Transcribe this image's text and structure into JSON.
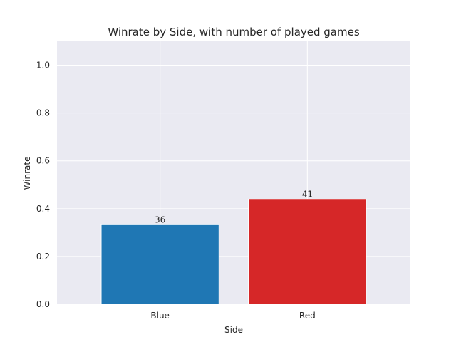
{
  "chart_data": {
    "type": "bar",
    "title": "Winrate by Side, with number of played games",
    "xlabel": "Side",
    "ylabel": "Winrate",
    "categories": [
      "Blue",
      "Red"
    ],
    "values": [
      0.333,
      0.439
    ],
    "bar_labels": [
      "36",
      "41"
    ],
    "bar_colors": [
      "#1f77b4",
      "#d62728"
    ],
    "ylim": [
      0,
      1.1
    ],
    "yticks": [
      0.0,
      0.2,
      0.4,
      0.6,
      0.8,
      1.0
    ],
    "ytick_labels": [
      "0.0",
      "0.2",
      "0.4",
      "0.6",
      "0.8",
      "1.0"
    ],
    "grid": true,
    "style": {
      "plot_background": "#eaeaf2",
      "grid_color": "#ffffff",
      "text_color": "#262626"
    }
  }
}
